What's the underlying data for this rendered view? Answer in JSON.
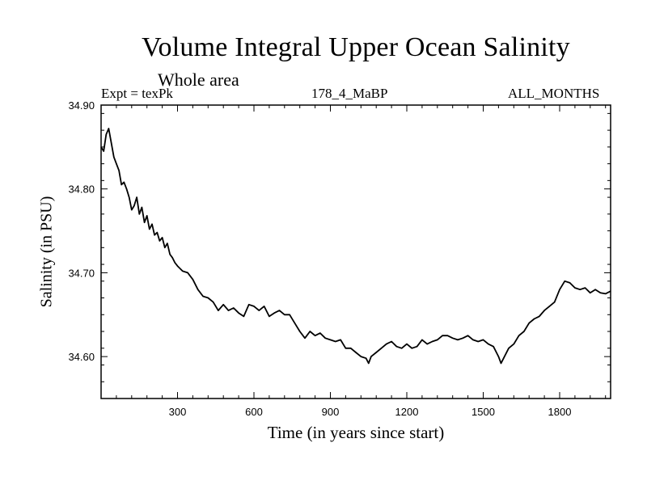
{
  "chart_data": {
    "type": "line",
    "title": "Volume Integral Upper Ocean Salinity",
    "subtitle": "Whole area",
    "experiment": "Expt = texPk",
    "run_id": "178_4_MaBP",
    "months": "ALL_MONTHS",
    "xlabel": "Time (in years since start)",
    "ylabel": "Salinity (in PSU)",
    "xlim": [
      0,
      2000
    ],
    "ylim": [
      34.55,
      34.9
    ],
    "x_ticks": [
      300,
      600,
      900,
      1200,
      1500,
      1800
    ],
    "x_tick_labels": [
      "300",
      "600",
      "900",
      "1200",
      "1500",
      "1800"
    ],
    "y_ticks": [
      34.6,
      34.7,
      34.8,
      34.9
    ],
    "y_tick_labels": [
      "34.60",
      "34.70",
      "34.80",
      "34.90"
    ],
    "series": [
      {
        "name": "Salinity",
        "x": [
          0,
          10,
          20,
          30,
          40,
          50,
          60,
          70,
          80,
          90,
          100,
          110,
          120,
          130,
          140,
          150,
          160,
          170,
          180,
          190,
          200,
          210,
          220,
          230,
          240,
          250,
          260,
          270,
          280,
          290,
          300,
          320,
          340,
          360,
          380,
          400,
          420,
          440,
          460,
          480,
          500,
          520,
          540,
          560,
          580,
          600,
          620,
          640,
          660,
          680,
          700,
          720,
          740,
          760,
          780,
          800,
          820,
          840,
          860,
          880,
          900,
          920,
          940,
          960,
          980,
          1000,
          1020,
          1040,
          1050,
          1060,
          1080,
          1100,
          1120,
          1140,
          1160,
          1180,
          1200,
          1220,
          1240,
          1260,
          1280,
          1300,
          1320,
          1340,
          1360,
          1380,
          1400,
          1420,
          1440,
          1460,
          1480,
          1500,
          1520,
          1540,
          1560,
          1570,
          1580,
          1600,
          1620,
          1640,
          1660,
          1680,
          1700,
          1720,
          1740,
          1760,
          1780,
          1800,
          1820,
          1840,
          1860,
          1880,
          1900,
          1920,
          1940,
          1960,
          1980,
          2000
        ],
        "values": [
          34.85,
          34.845,
          34.865,
          34.872,
          34.855,
          34.838,
          34.83,
          34.822,
          34.805,
          34.808,
          34.8,
          34.79,
          34.775,
          34.78,
          34.79,
          34.77,
          34.778,
          34.76,
          34.768,
          34.752,
          34.758,
          34.745,
          34.748,
          34.738,
          34.742,
          34.73,
          34.735,
          34.722,
          34.718,
          34.712,
          34.708,
          34.702,
          34.7,
          34.692,
          34.68,
          34.672,
          34.67,
          34.665,
          34.655,
          34.662,
          34.655,
          34.658,
          34.652,
          34.648,
          34.662,
          34.66,
          34.655,
          34.66,
          34.648,
          34.652,
          34.655,
          34.65,
          34.65,
          34.64,
          34.63,
          34.622,
          34.63,
          34.625,
          34.628,
          34.622,
          34.62,
          34.618,
          34.62,
          34.61,
          34.61,
          34.605,
          34.6,
          34.598,
          34.592,
          34.6,
          34.605,
          34.61,
          34.615,
          34.618,
          34.612,
          34.61,
          34.615,
          34.61,
          34.612,
          34.62,
          34.615,
          34.618,
          34.62,
          34.625,
          34.625,
          34.622,
          34.62,
          34.622,
          34.625,
          34.62,
          34.618,
          34.62,
          34.615,
          34.612,
          34.6,
          34.592,
          34.598,
          34.61,
          34.615,
          34.625,
          34.63,
          34.64,
          34.645,
          34.648,
          34.655,
          34.66,
          34.665,
          34.68,
          34.69,
          34.688,
          34.682,
          34.68,
          34.682,
          34.676,
          34.68,
          34.676,
          34.675,
          34.678
        ]
      }
    ]
  }
}
